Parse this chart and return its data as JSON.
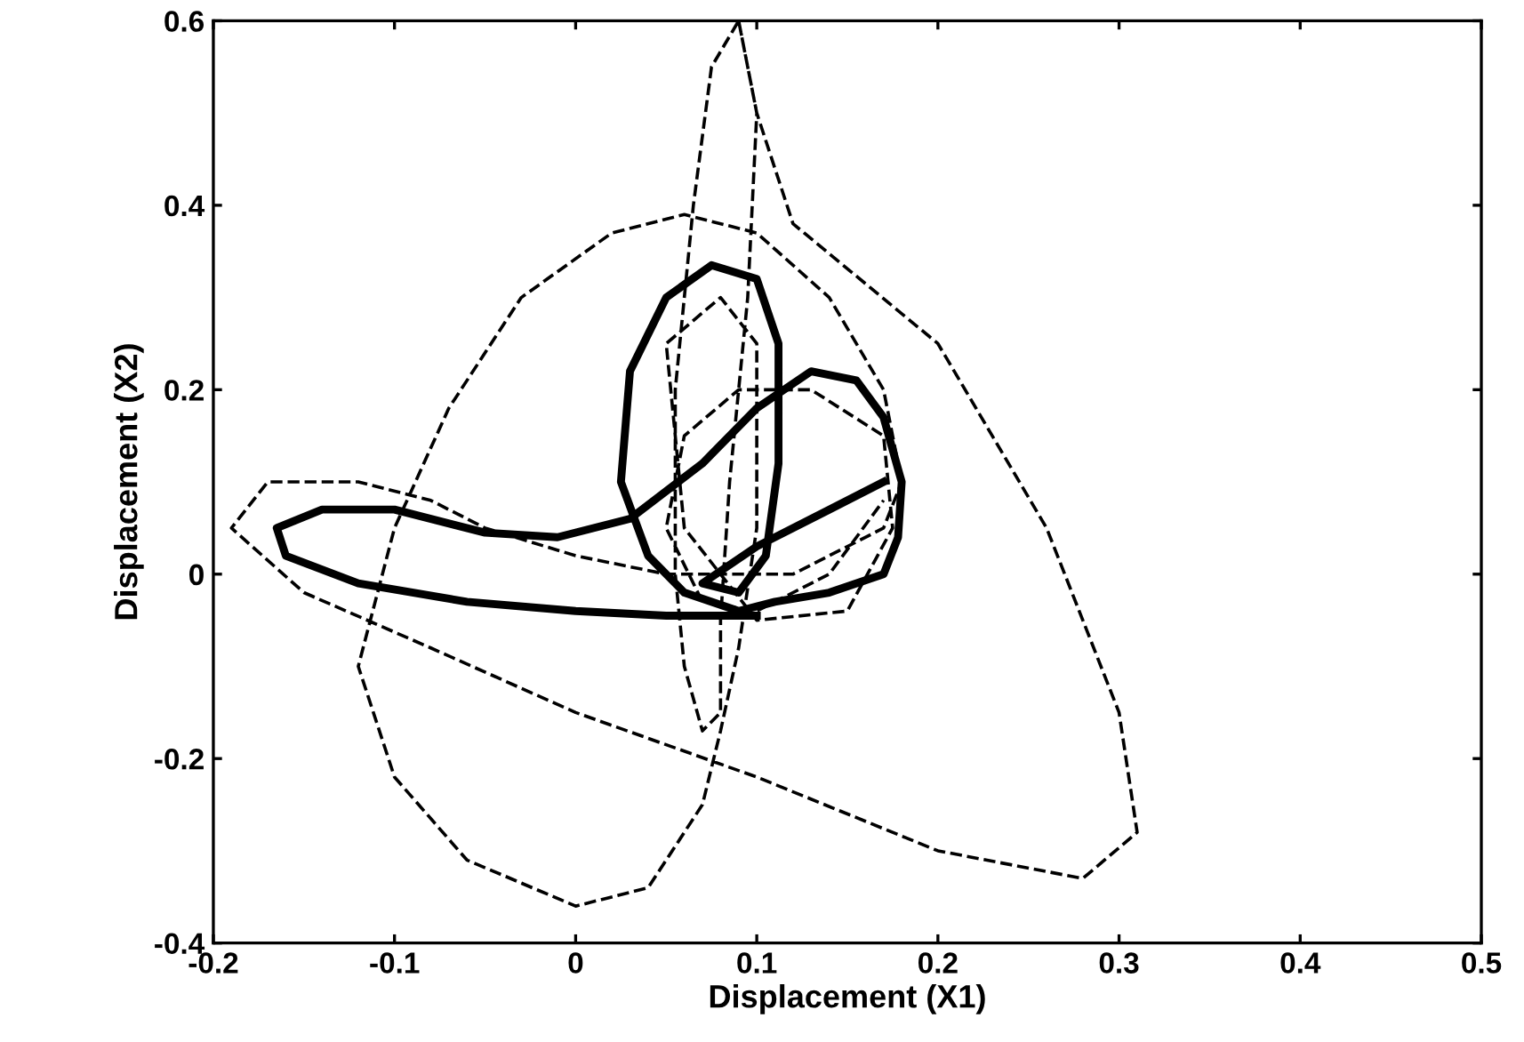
{
  "chart_data": {
    "type": "line",
    "xlabel": "Displacement (X1)",
    "ylabel": "Displacement (X2)",
    "xlim": [
      -0.2,
      0.5
    ],
    "ylim": [
      -0.4,
      0.6
    ],
    "xticks": [
      -0.2,
      -0.1,
      0,
      0.1,
      0.2,
      0.3,
      0.4,
      0.5
    ],
    "yticks": [
      -0.4,
      -0.2,
      0,
      0.2,
      0.4,
      0.6
    ],
    "grid": false,
    "legend": false,
    "marker": "none",
    "series": [
      {
        "color": "#000000",
        "line_style": "dashed",
        "x": [
          0.09,
          0.1,
          0.095,
          0.085,
          0.08,
          0.08,
          0.07,
          0.06,
          0.055,
          0.055,
          0.065,
          0.075,
          0.09,
          0.1,
          0.12,
          0.2,
          0.26,
          0.3,
          0.31,
          0.28,
          0.2,
          0.1,
          0.0,
          -0.08,
          -0.15,
          -0.19,
          -0.17,
          -0.12,
          -0.08,
          -0.05,
          0.0,
          0.05,
          0.12,
          0.17,
          0.18,
          0.17,
          0.14,
          0.1,
          0.06,
          0.02,
          -0.03,
          -0.07,
          -0.1,
          -0.12,
          -0.1,
          -0.06,
          0.0,
          0.04,
          0.07,
          0.08,
          0.09,
          0.1,
          0.1,
          0.08,
          0.05,
          0.06,
          0.1,
          0.15,
          0.175,
          0.17,
          0.13,
          0.09,
          0.06,
          0.05,
          0.07,
          0.1,
          0.14,
          0.17
        ],
        "values": [
          0.6,
          0.5,
          0.3,
          0.1,
          -0.05,
          -0.15,
          -0.17,
          -0.1,
          0.0,
          0.2,
          0.4,
          0.55,
          0.6,
          0.5,
          0.38,
          0.25,
          0.05,
          -0.15,
          -0.28,
          -0.33,
          -0.3,
          -0.22,
          -0.15,
          -0.08,
          -0.02,
          0.05,
          0.1,
          0.1,
          0.08,
          0.05,
          0.02,
          0.0,
          0.0,
          0.05,
          0.1,
          0.2,
          0.3,
          0.37,
          0.39,
          0.37,
          0.3,
          0.18,
          0.05,
          -0.1,
          -0.22,
          -0.31,
          -0.36,
          -0.34,
          -0.25,
          -0.17,
          -0.08,
          0.05,
          0.25,
          0.3,
          0.25,
          0.05,
          -0.05,
          -0.04,
          0.05,
          0.15,
          0.2,
          0.2,
          0.15,
          0.05,
          -0.03,
          -0.04,
          0.0,
          0.08
        ]
      },
      {
        "color": "#000000",
        "line_style": "solid",
        "x": [
          0.1,
          0.05,
          0.0,
          -0.06,
          -0.12,
          -0.16,
          -0.165,
          -0.14,
          -0.1,
          -0.05,
          -0.01,
          0.03,
          0.07,
          0.1,
          0.13,
          0.155,
          0.17,
          0.18,
          0.178,
          0.17,
          0.14,
          0.11,
          0.09,
          0.06,
          0.04,
          0.025,
          0.03,
          0.05,
          0.075,
          0.1,
          0.112,
          0.112,
          0.105,
          0.09,
          0.07,
          0.1,
          0.14,
          0.17
        ],
        "values": [
          -0.045,
          -0.045,
          -0.04,
          -0.03,
          -0.01,
          0.02,
          0.05,
          0.07,
          0.07,
          0.045,
          0.04,
          0.06,
          0.12,
          0.18,
          0.22,
          0.21,
          0.17,
          0.1,
          0.04,
          0.0,
          -0.02,
          -0.03,
          -0.04,
          -0.02,
          0.02,
          0.1,
          0.22,
          0.3,
          0.335,
          0.32,
          0.25,
          0.12,
          0.02,
          -0.02,
          -0.01,
          0.03,
          0.07,
          0.1
        ]
      }
    ]
  }
}
